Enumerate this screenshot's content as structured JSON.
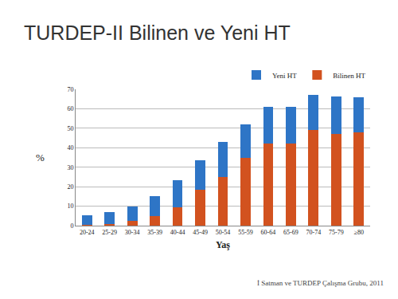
{
  "chart_data": {
    "type": "bar",
    "title": "TURDEP-II Bilinen ve Yeni HT",
    "x_label": "Yaş",
    "y_label": "%",
    "categories": [
      "20-24",
      "25-29",
      "30-34",
      "35-39",
      "40-44",
      "45-49",
      "50-54",
      "55-59",
      "60-64",
      "65-69",
      "70-74",
      "75-79",
      "≥80"
    ],
    "series": [
      {
        "name": "Bilinen HT",
        "color": "#d2521f",
        "values": [
          0.5,
          1,
          2.5,
          5,
          9.5,
          18.5,
          25,
          35,
          42,
          42,
          49,
          47,
          48
        ]
      },
      {
        "name": "Yeni HT",
        "color": "#2e75c6",
        "values": [
          5,
          6,
          7.5,
          10,
          14,
          15,
          18,
          17,
          19,
          19,
          18,
          19.5,
          18
        ]
      }
    ],
    "stacked": true,
    "ylim": [
      0,
      70
    ],
    "yticks": [
      0,
      10,
      20,
      30,
      40,
      50,
      60,
      70
    ],
    "grid": true,
    "legend": "top-right",
    "annotations": [
      "İ Satman ve TURDEP Çalışma Grubu, 2011"
    ]
  }
}
